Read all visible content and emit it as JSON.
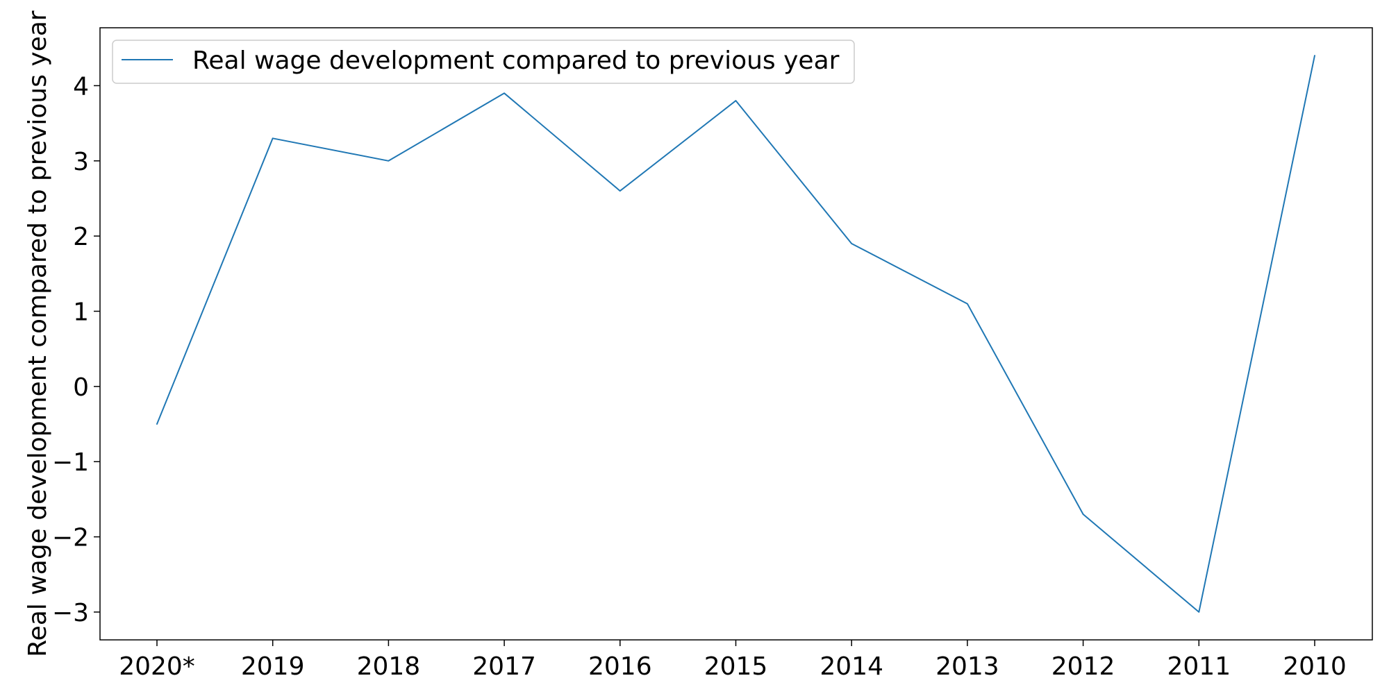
{
  "chart_data": {
    "type": "line",
    "title": "",
    "xlabel": "",
    "ylabel": "Real wage development compared to previous year",
    "categories": [
      "2020*",
      "2019",
      "2018",
      "2017",
      "2016",
      "2015",
      "2014",
      "2013",
      "2012",
      "2011",
      "2010"
    ],
    "series": [
      {
        "name": "Real wage development compared to previous year",
        "values": [
          -0.5,
          3.3,
          3.0,
          3.9,
          2.6,
          3.8,
          1.9,
          1.1,
          -1.7,
          -3.0,
          4.4
        ],
        "color": "#1f77b4"
      }
    ],
    "ylim": [
      -3.37,
      4.77
    ],
    "yticks": [
      4,
      3,
      2,
      1,
      0,
      -1,
      -2,
      -3
    ],
    "ytick_labels": [
      "4",
      "3",
      "2",
      "1",
      "0",
      "−1",
      "−2",
      "−3"
    ],
    "grid": false,
    "legend_position": "top-left"
  }
}
